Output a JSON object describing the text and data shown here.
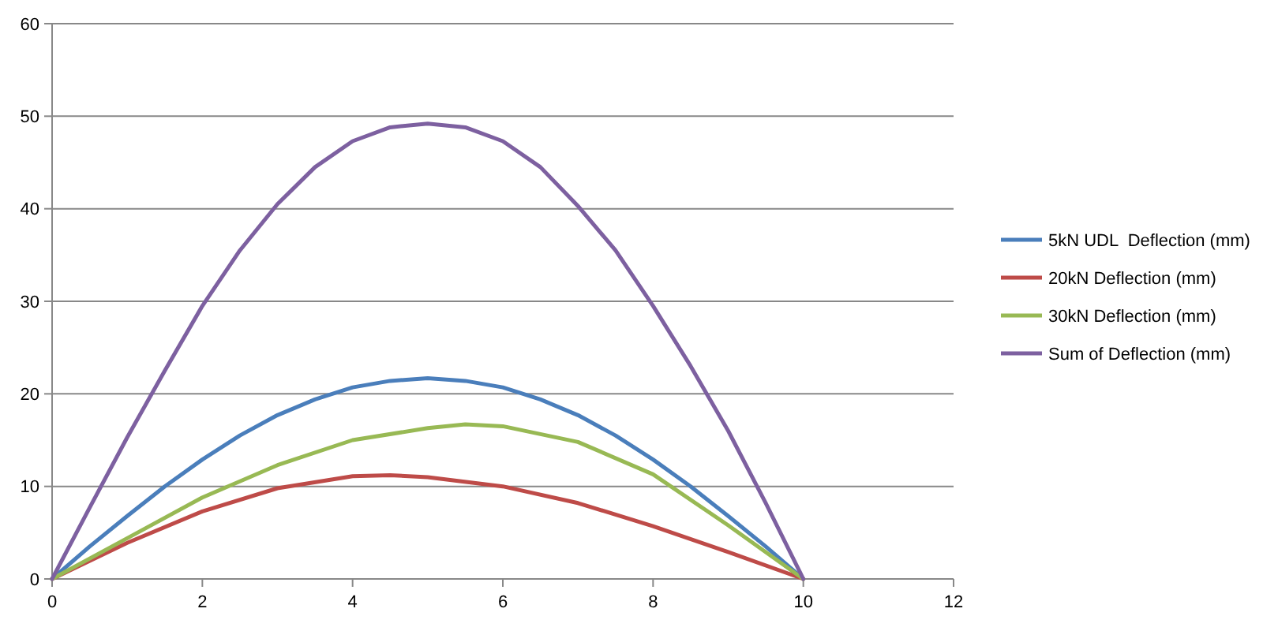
{
  "chart_data": {
    "type": "line",
    "xlim": [
      0,
      12
    ],
    "xticks": [
      0,
      2,
      4,
      6,
      8,
      10,
      12
    ],
    "ylim": [
      0,
      60
    ],
    "yticks": [
      0,
      10,
      20,
      30,
      40,
      50,
      60
    ],
    "grid": "y",
    "legend": "right",
    "marker": "none",
    "line_style": "solid",
    "series": [
      {
        "name": "5kN UDL  Deflection (mm)",
        "color": "#4a7ebb",
        "x": [
          0,
          0.5,
          1,
          1.5,
          2,
          2.5,
          3,
          3.5,
          4,
          4.5,
          5,
          5.5,
          6,
          6.5,
          7,
          7.5,
          8,
          8.5,
          9,
          9.5,
          10
        ],
        "values": [
          0,
          3.5,
          6.8,
          10.0,
          12.9,
          15.5,
          17.7,
          19.4,
          20.7,
          21.4,
          21.7,
          21.4,
          20.7,
          19.4,
          17.7,
          15.5,
          12.9,
          10.0,
          6.8,
          3.5,
          0
        ]
      },
      {
        "name": "20kN Deflection (mm)",
        "color": "#be4b48",
        "x": [
          0,
          1,
          2,
          3,
          4,
          4.5,
          5,
          6,
          7,
          8,
          9,
          10
        ],
        "values": [
          0,
          3.9,
          7.3,
          9.8,
          11.1,
          11.2,
          11.0,
          10.0,
          8.2,
          5.7,
          2.9,
          0
        ]
      },
      {
        "name": "30kN Deflection (mm)",
        "color": "#98b954",
        "x": [
          0,
          1,
          2,
          3,
          4,
          5,
          5.5,
          6,
          7,
          8,
          9,
          10
        ],
        "values": [
          0,
          4.4,
          8.8,
          12.3,
          15.0,
          16.3,
          16.7,
          16.5,
          14.8,
          11.3,
          5.8,
          0
        ]
      },
      {
        "name": "Sum of Deflection (mm)",
        "color": "#7d60a0",
        "x": [
          0,
          0.5,
          1,
          1.5,
          2,
          2.5,
          3,
          3.5,
          4,
          4.5,
          5,
          5.5,
          6,
          6.5,
          7,
          7.5,
          8,
          8.5,
          9,
          9.5,
          10
        ],
        "values": [
          0,
          7.7,
          15.3,
          22.5,
          29.5,
          35.5,
          40.5,
          44.5,
          47.3,
          48.8,
          49.2,
          48.8,
          47.3,
          44.5,
          40.3,
          35.5,
          29.5,
          23,
          16,
          8.2,
          0
        ]
      }
    ]
  }
}
